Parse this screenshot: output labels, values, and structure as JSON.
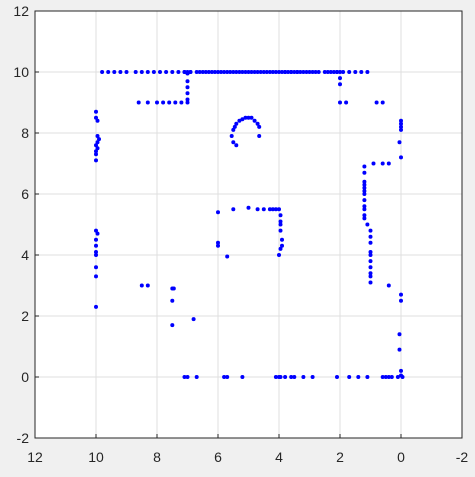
{
  "chart_data": {
    "type": "scatter",
    "xlim": [
      12,
      -2
    ],
    "ylim": [
      -2,
      12
    ],
    "x_reversed": true,
    "x_ticks": [
      "12",
      "10",
      "8",
      "6",
      "4",
      "2",
      "0",
      "-2"
    ],
    "y_ticks": [
      "-2",
      "0",
      "2",
      "4",
      "6",
      "8",
      "10",
      "12"
    ],
    "grid": true,
    "marker_color": "#0000ff",
    "series": [
      {
        "points": [
          [
            9.8,
            10.0
          ],
          [
            9.6,
            10.0
          ],
          [
            9.4,
            10.0
          ],
          [
            9.2,
            10.0
          ],
          [
            9.0,
            10.0
          ],
          [
            8.7,
            10.0
          ],
          [
            8.5,
            10.0
          ],
          [
            8.3,
            10.0
          ],
          [
            8.1,
            10.0
          ],
          [
            7.9,
            10.0
          ],
          [
            7.7,
            10.0
          ],
          [
            7.5,
            10.0
          ],
          [
            7.3,
            10.0
          ],
          [
            7.1,
            10.0
          ],
          [
            6.9,
            10.0
          ],
          [
            6.7,
            10.0
          ],
          [
            6.5,
            10.0
          ],
          [
            6.3,
            10.0
          ],
          [
            6.1,
            10.0
          ],
          [
            5.9,
            10.0
          ],
          [
            5.7,
            10.0
          ],
          [
            5.5,
            10.0
          ],
          [
            5.3,
            10.0
          ],
          [
            5.1,
            10.0
          ],
          [
            4.9,
            10.0
          ],
          [
            4.7,
            10.0
          ],
          [
            4.5,
            10.0
          ],
          [
            4.3,
            10.0
          ],
          [
            4.1,
            10.0
          ],
          [
            3.9,
            10.0
          ],
          [
            3.8,
            10.0
          ],
          [
            3.7,
            10.0
          ],
          [
            3.6,
            10.0
          ],
          [
            3.5,
            10.0
          ],
          [
            3.4,
            10.0
          ],
          [
            3.3,
            10.0
          ],
          [
            3.1,
            10.0
          ],
          [
            2.9,
            10.0
          ],
          [
            2.7,
            10.0
          ],
          [
            2.5,
            10.0
          ],
          [
            2.3,
            10.0
          ],
          [
            2.1,
            10.0
          ],
          [
            1.9,
            10.0
          ],
          [
            1.7,
            10.0
          ],
          [
            1.5,
            10.0
          ],
          [
            1.3,
            10.0
          ],
          [
            1.1,
            10.0
          ],
          [
            7.1,
            10.0
          ],
          [
            7.0,
            10.0
          ],
          [
            6.9,
            10.0
          ],
          [
            6.6,
            10.0
          ],
          [
            6.4,
            10.0
          ],
          [
            6.2,
            10.0
          ],
          [
            6.0,
            10.0
          ],
          [
            5.8,
            10.0
          ],
          [
            5.6,
            10.0
          ],
          [
            5.4,
            10.0
          ],
          [
            5.2,
            10.0
          ],
          [
            5.0,
            10.0
          ],
          [
            4.8,
            10.0
          ],
          [
            4.6,
            10.0
          ],
          [
            4.4,
            10.0
          ],
          [
            4.2,
            10.0
          ],
          [
            4.0,
            10.0
          ],
          [
            3.8,
            10.0
          ],
          [
            3.6,
            10.0
          ],
          [
            3.4,
            10.0
          ],
          [
            3.2,
            10.0
          ],
          [
            3.0,
            10.0
          ],
          [
            2.8,
            10.0
          ],
          [
            2.4,
            10.0
          ],
          [
            2.2,
            10.0
          ],
          [
            2.1,
            10.0
          ],
          [
            2.0,
            10.0
          ],
          [
            2.0,
            9.8
          ],
          [
            2.0,
            9.6
          ],
          [
            2.0,
            9.0
          ],
          [
            1.8,
            9.0
          ],
          [
            0.8,
            9.0
          ],
          [
            0.6,
            9.0
          ],
          [
            7.0,
            9.95
          ],
          [
            7.0,
            9.7
          ],
          [
            7.0,
            9.5
          ],
          [
            7.0,
            9.3
          ],
          [
            7.0,
            9.1
          ],
          [
            7.0,
            9.0
          ],
          [
            7.2,
            9.0
          ],
          [
            7.4,
            9.0
          ],
          [
            7.6,
            9.0
          ],
          [
            7.8,
            9.0
          ],
          [
            8.0,
            9.0
          ],
          [
            8.3,
            9.0
          ],
          [
            8.6,
            9.0
          ],
          [
            10.0,
            8.7
          ],
          [
            10.0,
            8.5
          ],
          [
            9.95,
            8.4
          ],
          [
            9.95,
            7.9
          ],
          [
            9.9,
            7.8
          ],
          [
            9.95,
            7.7
          ],
          [
            10.0,
            7.6
          ],
          [
            9.95,
            7.5
          ],
          [
            10.0,
            7.4
          ],
          [
            10.0,
            7.3
          ],
          [
            10.0,
            7.1
          ],
          [
            10.0,
            4.8
          ],
          [
            9.95,
            4.7
          ],
          [
            10.0,
            4.5
          ],
          [
            10.0,
            4.3
          ],
          [
            10.0,
            4.1
          ],
          [
            10.0,
            4.0
          ],
          [
            10.0,
            3.6
          ],
          [
            10.0,
            3.3
          ],
          [
            10.0,
            2.3
          ],
          [
            5.4,
            7.6
          ],
          [
            5.5,
            7.7
          ],
          [
            5.55,
            7.9
          ],
          [
            5.5,
            8.1
          ],
          [
            5.45,
            8.2
          ],
          [
            5.4,
            8.3
          ],
          [
            5.3,
            8.4
          ],
          [
            5.2,
            8.45
          ],
          [
            5.1,
            8.5
          ],
          [
            5.0,
            8.5
          ],
          [
            4.9,
            8.5
          ],
          [
            4.8,
            8.4
          ],
          [
            4.7,
            8.3
          ],
          [
            4.65,
            8.2
          ],
          [
            4.65,
            7.9
          ],
          [
            0.0,
            8.4
          ],
          [
            0.0,
            8.3
          ],
          [
            0.0,
            8.2
          ],
          [
            0.0,
            8.1
          ],
          [
            0.05,
            7.7
          ],
          [
            0.0,
            7.2
          ],
          [
            0.4,
            7.0
          ],
          [
            0.6,
            7.0
          ],
          [
            0.9,
            7.0
          ],
          [
            1.2,
            6.9
          ],
          [
            1.2,
            6.7
          ],
          [
            1.2,
            6.4
          ],
          [
            1.2,
            6.3
          ],
          [
            1.2,
            6.2
          ],
          [
            1.2,
            6.1
          ],
          [
            1.2,
            6.0
          ],
          [
            1.2,
            5.8
          ],
          [
            1.2,
            5.6
          ],
          [
            1.2,
            5.5
          ],
          [
            1.2,
            5.3
          ],
          [
            1.2,
            5.2
          ],
          [
            1.1,
            5.0
          ],
          [
            1.0,
            4.8
          ],
          [
            1.0,
            4.6
          ],
          [
            1.0,
            4.4
          ],
          [
            1.0,
            4.1
          ],
          [
            1.0,
            4.0
          ],
          [
            1.0,
            3.8
          ],
          [
            1.0,
            3.6
          ],
          [
            1.0,
            3.4
          ],
          [
            1.0,
            3.3
          ],
          [
            1.0,
            3.1
          ],
          [
            0.4,
            3.0
          ],
          [
            0.0,
            2.7
          ],
          [
            0.0,
            2.5
          ],
          [
            0.05,
            1.4
          ],
          [
            0.05,
            0.9
          ],
          [
            0.0,
            0.2
          ],
          [
            0.0,
            0.05
          ],
          [
            -0.05,
            0.0
          ],
          [
            6.0,
            5.4
          ],
          [
            5.5,
            5.5
          ],
          [
            5.0,
            5.55
          ],
          [
            4.7,
            5.5
          ],
          [
            4.5,
            5.5
          ],
          [
            4.3,
            5.5
          ],
          [
            4.2,
            5.5
          ],
          [
            4.1,
            5.5
          ],
          [
            4.0,
            5.5
          ],
          [
            3.95,
            5.3
          ],
          [
            3.95,
            5.1
          ],
          [
            3.95,
            5.0
          ],
          [
            3.95,
            4.8
          ],
          [
            3.9,
            4.5
          ],
          [
            3.9,
            4.3
          ],
          [
            3.95,
            4.2
          ],
          [
            4.0,
            4.0
          ],
          [
            6.0,
            4.4
          ],
          [
            6.0,
            4.3
          ],
          [
            5.7,
            3.95
          ],
          [
            8.5,
            3.0
          ],
          [
            8.3,
            3.0
          ],
          [
            7.5,
            2.9
          ],
          [
            7.45,
            2.9
          ],
          [
            7.5,
            2.5
          ],
          [
            7.5,
            1.7
          ],
          [
            6.8,
            1.9
          ],
          [
            7.1,
            0.0
          ],
          [
            7.0,
            0.0
          ],
          [
            6.7,
            0.0
          ],
          [
            5.8,
            0.0
          ],
          [
            5.7,
            0.0
          ],
          [
            5.2,
            0.0
          ],
          [
            4.1,
            0.0
          ],
          [
            4.0,
            0.0
          ],
          [
            3.95,
            0.0
          ],
          [
            3.8,
            0.0
          ],
          [
            3.6,
            0.0
          ],
          [
            3.5,
            0.0
          ],
          [
            3.2,
            0.0
          ],
          [
            2.9,
            0.0
          ],
          [
            2.1,
            0.0
          ],
          [
            1.7,
            0.0
          ],
          [
            1.4,
            0.0
          ],
          [
            1.1,
            0.0
          ],
          [
            0.6,
            0.0
          ],
          [
            0.5,
            0.0
          ],
          [
            0.4,
            0.0
          ],
          [
            0.3,
            0.0
          ],
          [
            0.1,
            0.0
          ]
        ]
      }
    ]
  }
}
